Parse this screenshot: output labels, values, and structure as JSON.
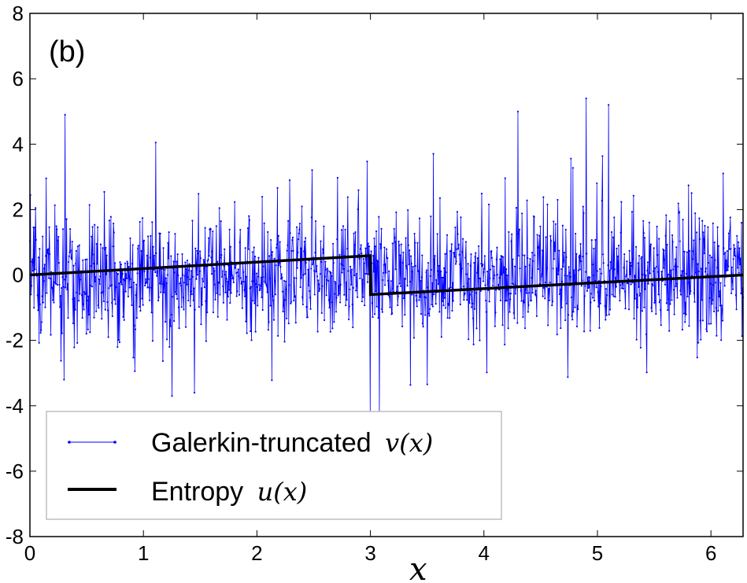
{
  "chart_data": {
    "type": "line",
    "panel_label": "(b)",
    "xlabel": "x",
    "ylabel": "",
    "xlim": [
      0,
      6.283
    ],
    "ylim": [
      -8,
      8
    ],
    "xticks": [
      0,
      1,
      2,
      3,
      4,
      5,
      6
    ],
    "xtick_labels": [
      "0",
      "1",
      "2",
      "3",
      "4",
      "5",
      "6"
    ],
    "yticks": [
      -8,
      -6,
      -4,
      -2,
      0,
      2,
      4,
      6,
      8
    ],
    "ytick_labels": [
      "-8",
      "-6",
      "-4",
      "-2",
      "0",
      "2",
      "4",
      "6",
      "8"
    ],
    "grid": false,
    "legend_position": "lower-left",
    "series": [
      {
        "name_text": "Galerkin-truncated",
        "name_math": "v(x)",
        "style": "thin line with dot markers",
        "color": "#0000ff",
        "description_values": "highly oscillatory noise-like signal, mostly within [-2, 2], with sparse spikes up to about 6 and down to about -4.2",
        "peaks": [
          {
            "x": 0.31,
            "y": 6.0
          },
          {
            "x": 0.31,
            "y": 4.9
          },
          {
            "x": 1.11,
            "y": 4.05
          },
          {
            "x": 4.3,
            "y": 5.0
          },
          {
            "x": 4.9,
            "y": 5.4
          },
          {
            "x": 5.1,
            "y": 5.2
          },
          {
            "x": 3.0,
            "y": -4.2
          },
          {
            "x": 3.08,
            "y": -4.2
          },
          {
            "x": 1.25,
            "y": -3.7
          },
          {
            "x": 0.3,
            "y": -3.2
          }
        ]
      },
      {
        "name_text": "Entropy",
        "name_math": "u(x)",
        "style": "thick solid line",
        "color": "#000000",
        "x": [
          0,
          3.0,
          3.0,
          6.283
        ],
        "y": [
          0,
          0.59,
          -0.6,
          0
        ]
      }
    ]
  }
}
